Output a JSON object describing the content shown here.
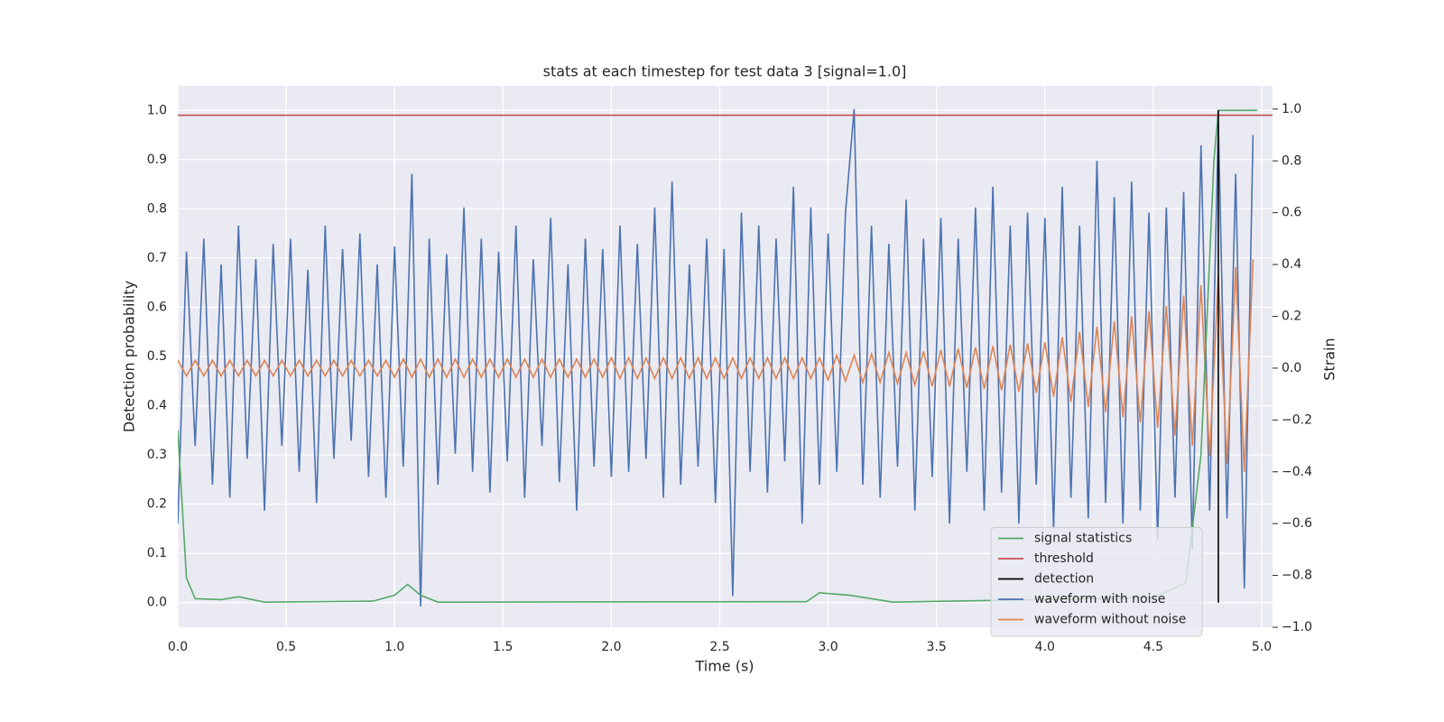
{
  "chart_data": {
    "type": "line",
    "title": "stats at each timestep for test data 3 [signal=1.0]",
    "xlabel": "Time (s)",
    "ylabel": "Detection probability",
    "y2label": "Strain",
    "xlim": [
      0,
      5.05
    ],
    "ylim": [
      -0.05,
      1.05
    ],
    "y2lim": [
      -1.0,
      1.09
    ],
    "xticks": [
      {
        "value": 0,
        "label": "0.0"
      },
      0.5,
      {
        "value": 1,
        "label": "1.0"
      },
      1.5,
      {
        "value": 2,
        "label": "2.0"
      },
      2.5,
      {
        "value": 3,
        "label": "3.0"
      },
      3.5,
      {
        "value": 4,
        "label": "4.0"
      },
      4.5,
      {
        "value": 5,
        "label": "5.0"
      }
    ],
    "yticks": [
      {
        "value": 0,
        "label": "0.0"
      },
      0.1,
      0.2,
      0.3,
      0.4,
      0.5,
      0.6,
      0.7,
      0.8,
      0.9,
      {
        "value": 1,
        "label": "1.0"
      }
    ],
    "y2ticks": [
      {
        "value": -1,
        "label": "−1.0"
      },
      {
        "value": -0.8,
        "label": "−0.8"
      },
      {
        "value": -0.6,
        "label": "−0.6"
      },
      {
        "value": -0.4,
        "label": "−0.4"
      },
      {
        "value": -0.2,
        "label": "−0.2"
      },
      {
        "value": 0,
        "label": "0.0"
      },
      0.2,
      0.4,
      0.6,
      0.8,
      {
        "value": 1,
        "label": "1.0"
      }
    ],
    "grid": true,
    "legend": "lower right",
    "x": [
      0,
      0.04,
      0.08,
      0.12,
      0.16,
      0.2,
      0.24,
      0.28,
      0.32,
      0.36,
      0.4,
      0.44,
      0.48,
      0.52,
      0.56,
      0.6,
      0.64,
      0.68,
      0.72,
      0.76,
      0.8,
      0.84,
      0.88,
      0.92,
      0.96,
      1,
      1.04,
      1.08,
      1.12,
      1.16,
      1.2,
      1.24,
      1.28,
      1.32,
      1.36,
      1.4,
      1.44,
      1.48,
      1.52,
      1.56,
      1.6,
      1.64,
      1.68,
      1.72,
      1.76,
      1.8,
      1.84,
      1.88,
      1.92,
      1.96,
      2,
      2.04,
      2.08,
      2.12,
      2.16,
      2.2,
      2.24,
      2.28,
      2.32,
      2.36,
      2.4,
      2.44,
      2.48,
      2.52,
      2.56,
      2.6,
      2.64,
      2.68,
      2.72,
      2.76,
      2.8,
      2.84,
      2.88,
      2.92,
      2.96,
      3,
      3.04,
      3.08,
      3.12,
      3.16,
      3.2,
      3.24,
      3.28,
      3.32,
      3.36,
      3.4,
      3.44,
      3.48,
      3.52,
      3.56,
      3.6,
      3.64,
      3.68,
      3.72,
      3.76,
      3.8,
      3.84,
      3.88,
      3.92,
      3.96,
      4,
      4.04,
      4.08,
      4.12,
      4.16,
      4.2,
      4.24,
      4.28,
      4.32,
      4.36,
      4.4,
      4.44,
      4.48,
      4.52,
      4.56,
      4.6,
      4.64,
      4.68,
      4.72,
      4.76,
      4.8,
      4.84,
      4.88,
      4.92,
      4.96
    ],
    "series": [
      {
        "name": "signal statistics",
        "color": "#55a868",
        "x": [
          0,
          0.02,
          0.04,
          0.08,
          0.2,
          0.28,
          0.4,
          0.9,
          1.0,
          1.06,
          1.12,
          1.2,
          2.9,
          2.96,
          3.1,
          3.3,
          4.5,
          4.65,
          4.72,
          4.78,
          4.8,
          4.98
        ],
        "values": [
          0.35,
          0.2,
          0.05,
          0.008,
          0.006,
          0.012,
          0.001,
          0.003,
          0.015,
          0.037,
          0.015,
          0.001,
          0.002,
          0.02,
          0.015,
          0.001,
          0.01,
          0.04,
          0.3,
          0.9,
          1.0,
          1.0
        ]
      },
      {
        "name": "threshold",
        "color": "#c44e52",
        "x": [
          0,
          5.05
        ],
        "values": [
          0.99,
          0.99
        ]
      },
      {
        "name": "detection",
        "color": "#000000",
        "x": [
          4.8,
          4.8
        ],
        "values": [
          0,
          1.0
        ]
      },
      {
        "name": "waveform with noise",
        "color": "#4c72b0",
        "axis": "y2",
        "values": [
          -0.6,
          0.45,
          -0.3,
          0.5,
          -0.45,
          0.4,
          -0.5,
          0.55,
          -0.35,
          0.42,
          -0.55,
          0.48,
          -0.3,
          0.5,
          -0.4,
          0.38,
          -0.52,
          0.55,
          -0.35,
          0.46,
          -0.28,
          0.52,
          -0.42,
          0.4,
          -0.5,
          0.47,
          -0.38,
          0.75,
          -0.92,
          0.5,
          -0.45,
          0.44,
          -0.33,
          0.62,
          -0.4,
          0.5,
          -0.48,
          0.45,
          -0.36,
          0.55,
          -0.5,
          0.42,
          -0.3,
          0.58,
          -0.44,
          0.4,
          -0.55,
          0.5,
          -0.38,
          0.46,
          -0.42,
          0.55,
          -0.4,
          0.48,
          -0.35,
          0.62,
          -0.5,
          0.72,
          -0.45,
          0.4,
          -0.38,
          0.5,
          -0.52,
          0.46,
          -0.88,
          0.6,
          -0.4,
          0.55,
          -0.48,
          0.5,
          -0.36,
          0.7,
          -0.6,
          0.62,
          -0.45,
          0.52,
          -0.4,
          0.6,
          1.0,
          -0.45,
          0.55,
          -0.5,
          0.48,
          -0.38,
          0.65,
          -0.55,
          0.5,
          -0.42,
          0.58,
          -0.6,
          0.5,
          -0.4,
          0.62,
          -0.55,
          0.7,
          -0.48,
          0.55,
          -0.6,
          0.6,
          -0.45,
          0.58,
          -0.62,
          0.7,
          -0.5,
          0.55,
          -0.58,
          0.8,
          -0.52,
          0.66,
          -0.6,
          0.72,
          -0.55,
          0.6,
          -0.66,
          0.62,
          -0.5,
          0.68,
          -0.7,
          0.86,
          -0.55,
          0.95,
          -0.58,
          0.75,
          -0.85,
          0.9
        ]
      },
      {
        "name": "waveform without noise",
        "color": "#dd8452",
        "axis": "y2",
        "values": [
          0.03,
          -0.03,
          0.03,
          -0.03,
          0.03,
          -0.03,
          0.03,
          -0.03,
          0.03,
          -0.03,
          0.03,
          -0.03,
          0.03,
          -0.03,
          0.03,
          -0.03,
          0.03,
          -0.03,
          0.03,
          -0.03,
          0.03,
          -0.03,
          0.03,
          -0.03,
          0.03,
          -0.035,
          0.035,
          -0.035,
          0.035,
          -0.035,
          0.035,
          -0.035,
          0.035,
          -0.035,
          0.035,
          -0.035,
          0.035,
          -0.035,
          0.035,
          -0.035,
          0.035,
          -0.035,
          0.035,
          -0.035,
          0.035,
          -0.035,
          0.035,
          -0.035,
          0.035,
          -0.035,
          0.04,
          -0.04,
          0.04,
          -0.04,
          0.04,
          -0.04,
          0.04,
          -0.04,
          0.04,
          -0.04,
          0.04,
          -0.04,
          0.04,
          -0.04,
          0.04,
          -0.04,
          0.04,
          -0.04,
          0.04,
          -0.04,
          0.04,
          -0.04,
          0.04,
          -0.04,
          0.04,
          -0.045,
          0.05,
          -0.05,
          0.05,
          -0.055,
          0.055,
          -0.055,
          0.06,
          -0.06,
          0.06,
          -0.065,
          0.065,
          -0.07,
          0.07,
          -0.07,
          0.075,
          -0.075,
          0.08,
          -0.08,
          0.085,
          -0.085,
          0.09,
          -0.09,
          0.095,
          -0.095,
          0.1,
          -0.11,
          0.12,
          -0.13,
          0.14,
          -0.15,
          0.16,
          -0.17,
          0.18,
          -0.19,
          0.2,
          -0.21,
          0.22,
          -0.23,
          0.24,
          -0.26,
          0.28,
          -0.3,
          0.32,
          -0.34,
          0.36,
          -0.37,
          0.39,
          -0.4,
          0.42
        ]
      }
    ]
  }
}
